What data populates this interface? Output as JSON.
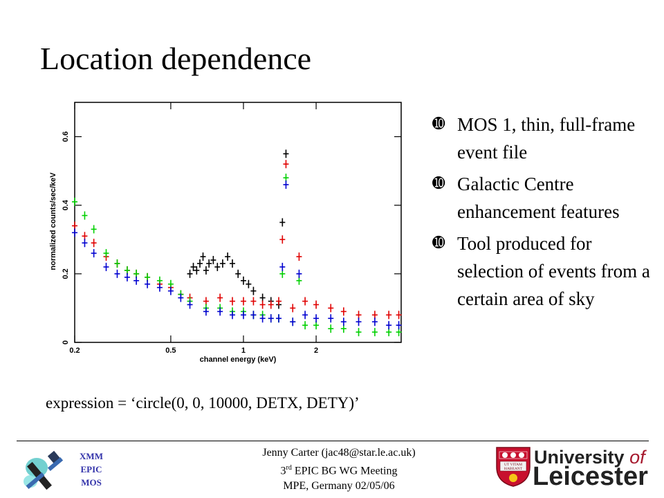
{
  "slide": {
    "title": "Location dependence",
    "bullet_marker": "➓",
    "bullets": [
      "MOS 1, thin, full-frame event file",
      "Galactic Centre enhancement features",
      "Tool produced for selection of events from a certain area of sky"
    ],
    "expression": "expression = ‘circle(0, 0, 10000, DETX, DETY)’"
  },
  "footer": {
    "author": "Jenny Carter (jac48@star.le.ac.uk)",
    "meeting_ordinal": "3",
    "meeting_suffix": "rd",
    "meeting_name": " EPIC BG WG Meeting",
    "venue": "MPE, Germany 02/05/06",
    "xmm_lines": [
      "XMM",
      "EPIC",
      "MOS"
    ],
    "university_line1": "University",
    "university_of": "of",
    "university_line2": "Leicester",
    "crest_motto": [
      "UT VITAM",
      "HABEANT"
    ]
  },
  "chart_data": {
    "type": "scatter",
    "xlabel": "channel energy (keV)",
    "ylabel": "normalized counts/sec/keV",
    "xscale": "log",
    "xlim": [
      0.2,
      4.5
    ],
    "ylim": [
      0,
      0.7
    ],
    "xticks": [
      {
        "v": 0.2,
        "label": "0.2"
      },
      {
        "v": 0.5,
        "label": "0.5"
      },
      {
        "v": 1,
        "label": "1"
      },
      {
        "v": 2,
        "label": "2"
      }
    ],
    "yticks": [
      {
        "v": 0,
        "label": "0"
      },
      {
        "v": 0.2,
        "label": "0.2"
      },
      {
        "v": 0.4,
        "label": "0.4"
      },
      {
        "v": 0.6,
        "label": "0.6"
      }
    ],
    "grid": false,
    "series": [
      {
        "color": "#000000",
        "x": [
          0.6,
          0.62,
          0.64,
          0.66,
          0.68,
          0.7,
          0.72,
          0.75,
          0.78,
          0.82,
          0.86,
          0.9,
          0.95,
          1.0,
          1.05,
          1.1,
          1.2,
          1.3,
          1.4,
          1.45,
          1.5
        ],
        "y": [
          0.2,
          0.22,
          0.21,
          0.23,
          0.25,
          0.21,
          0.23,
          0.24,
          0.22,
          0.23,
          0.25,
          0.23,
          0.2,
          0.18,
          0.17,
          0.15,
          0.13,
          0.12,
          0.11,
          0.35,
          0.55
        ]
      },
      {
        "color": "#e00000",
        "x": [
          0.2,
          0.22,
          0.24,
          0.27,
          0.3,
          0.33,
          0.36,
          0.4,
          0.45,
          0.5,
          0.55,
          0.6,
          0.7,
          0.8,
          0.9,
          1.0,
          1.1,
          1.2,
          1.3,
          1.4,
          1.45,
          1.5,
          1.6,
          1.7,
          1.8,
          2.0,
          2.3,
          2.6,
          3.0,
          3.5,
          4.0,
          4.4
        ],
        "y": [
          0.34,
          0.31,
          0.29,
          0.25,
          0.23,
          0.21,
          0.2,
          0.19,
          0.17,
          0.16,
          0.14,
          0.13,
          0.12,
          0.13,
          0.12,
          0.12,
          0.12,
          0.11,
          0.11,
          0.12,
          0.3,
          0.52,
          0.1,
          0.25,
          0.12,
          0.11,
          0.1,
          0.09,
          0.08,
          0.08,
          0.08,
          0.08
        ]
      },
      {
        "color": "#00d000",
        "x": [
          0.2,
          0.22,
          0.24,
          0.27,
          0.3,
          0.33,
          0.36,
          0.4,
          0.45,
          0.5,
          0.55,
          0.6,
          0.7,
          0.8,
          0.9,
          1.0,
          1.1,
          1.2,
          1.3,
          1.4,
          1.45,
          1.5,
          1.6,
          1.7,
          1.8,
          2.0,
          2.3,
          2.6,
          3.0,
          3.5,
          4.0,
          4.4
        ],
        "y": [
          0.41,
          0.37,
          0.33,
          0.26,
          0.23,
          0.21,
          0.2,
          0.19,
          0.18,
          0.17,
          0.14,
          0.12,
          0.1,
          0.1,
          0.09,
          0.09,
          0.08,
          0.08,
          0.07,
          0.07,
          0.2,
          0.48,
          0.06,
          0.18,
          0.05,
          0.05,
          0.04,
          0.04,
          0.03,
          0.03,
          0.03,
          0.03
        ]
      },
      {
        "color": "#0000d0",
        "x": [
          0.2,
          0.22,
          0.24,
          0.27,
          0.3,
          0.33,
          0.36,
          0.4,
          0.45,
          0.5,
          0.55,
          0.6,
          0.7,
          0.8,
          0.9,
          1.0,
          1.1,
          1.2,
          1.3,
          1.4,
          1.45,
          1.5,
          1.6,
          1.7,
          1.8,
          2.0,
          2.3,
          2.6,
          3.0,
          3.5,
          4.0,
          4.4
        ],
        "y": [
          0.32,
          0.29,
          0.26,
          0.22,
          0.2,
          0.19,
          0.18,
          0.17,
          0.16,
          0.15,
          0.13,
          0.11,
          0.09,
          0.09,
          0.08,
          0.08,
          0.08,
          0.07,
          0.07,
          0.07,
          0.22,
          0.46,
          0.06,
          0.2,
          0.08,
          0.07,
          0.07,
          0.06,
          0.06,
          0.06,
          0.05,
          0.05
        ]
      }
    ]
  }
}
